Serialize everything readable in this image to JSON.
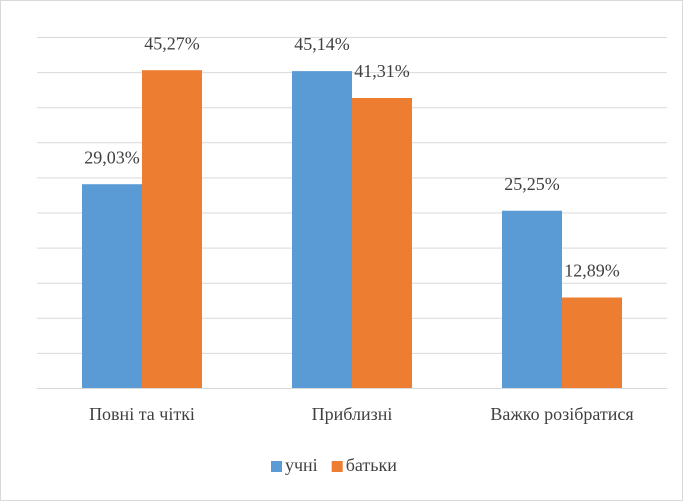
{
  "chart_data": {
    "type": "bar",
    "categories": [
      "Повні та чіткі",
      "Приблизні",
      "Важко розібратися"
    ],
    "series": [
      {
        "name": "учні",
        "color": "#5b9bd5",
        "values": [
          29.03,
          45.14,
          25.25
        ],
        "value_labels": [
          "29,03%",
          "45,14%",
          "25,25%"
        ]
      },
      {
        "name": "батьки",
        "color": "#ed7d31",
        "values": [
          45.27,
          41.31,
          12.89
        ],
        "value_labels": [
          "45,27%",
          "41,31%",
          "12,89%"
        ]
      }
    ],
    "ylim": [
      0,
      50
    ],
    "yticks": [
      0,
      5,
      10,
      15,
      20,
      25,
      30,
      35,
      40,
      45,
      50
    ],
    "grid": true,
    "legend": "bottom"
  }
}
